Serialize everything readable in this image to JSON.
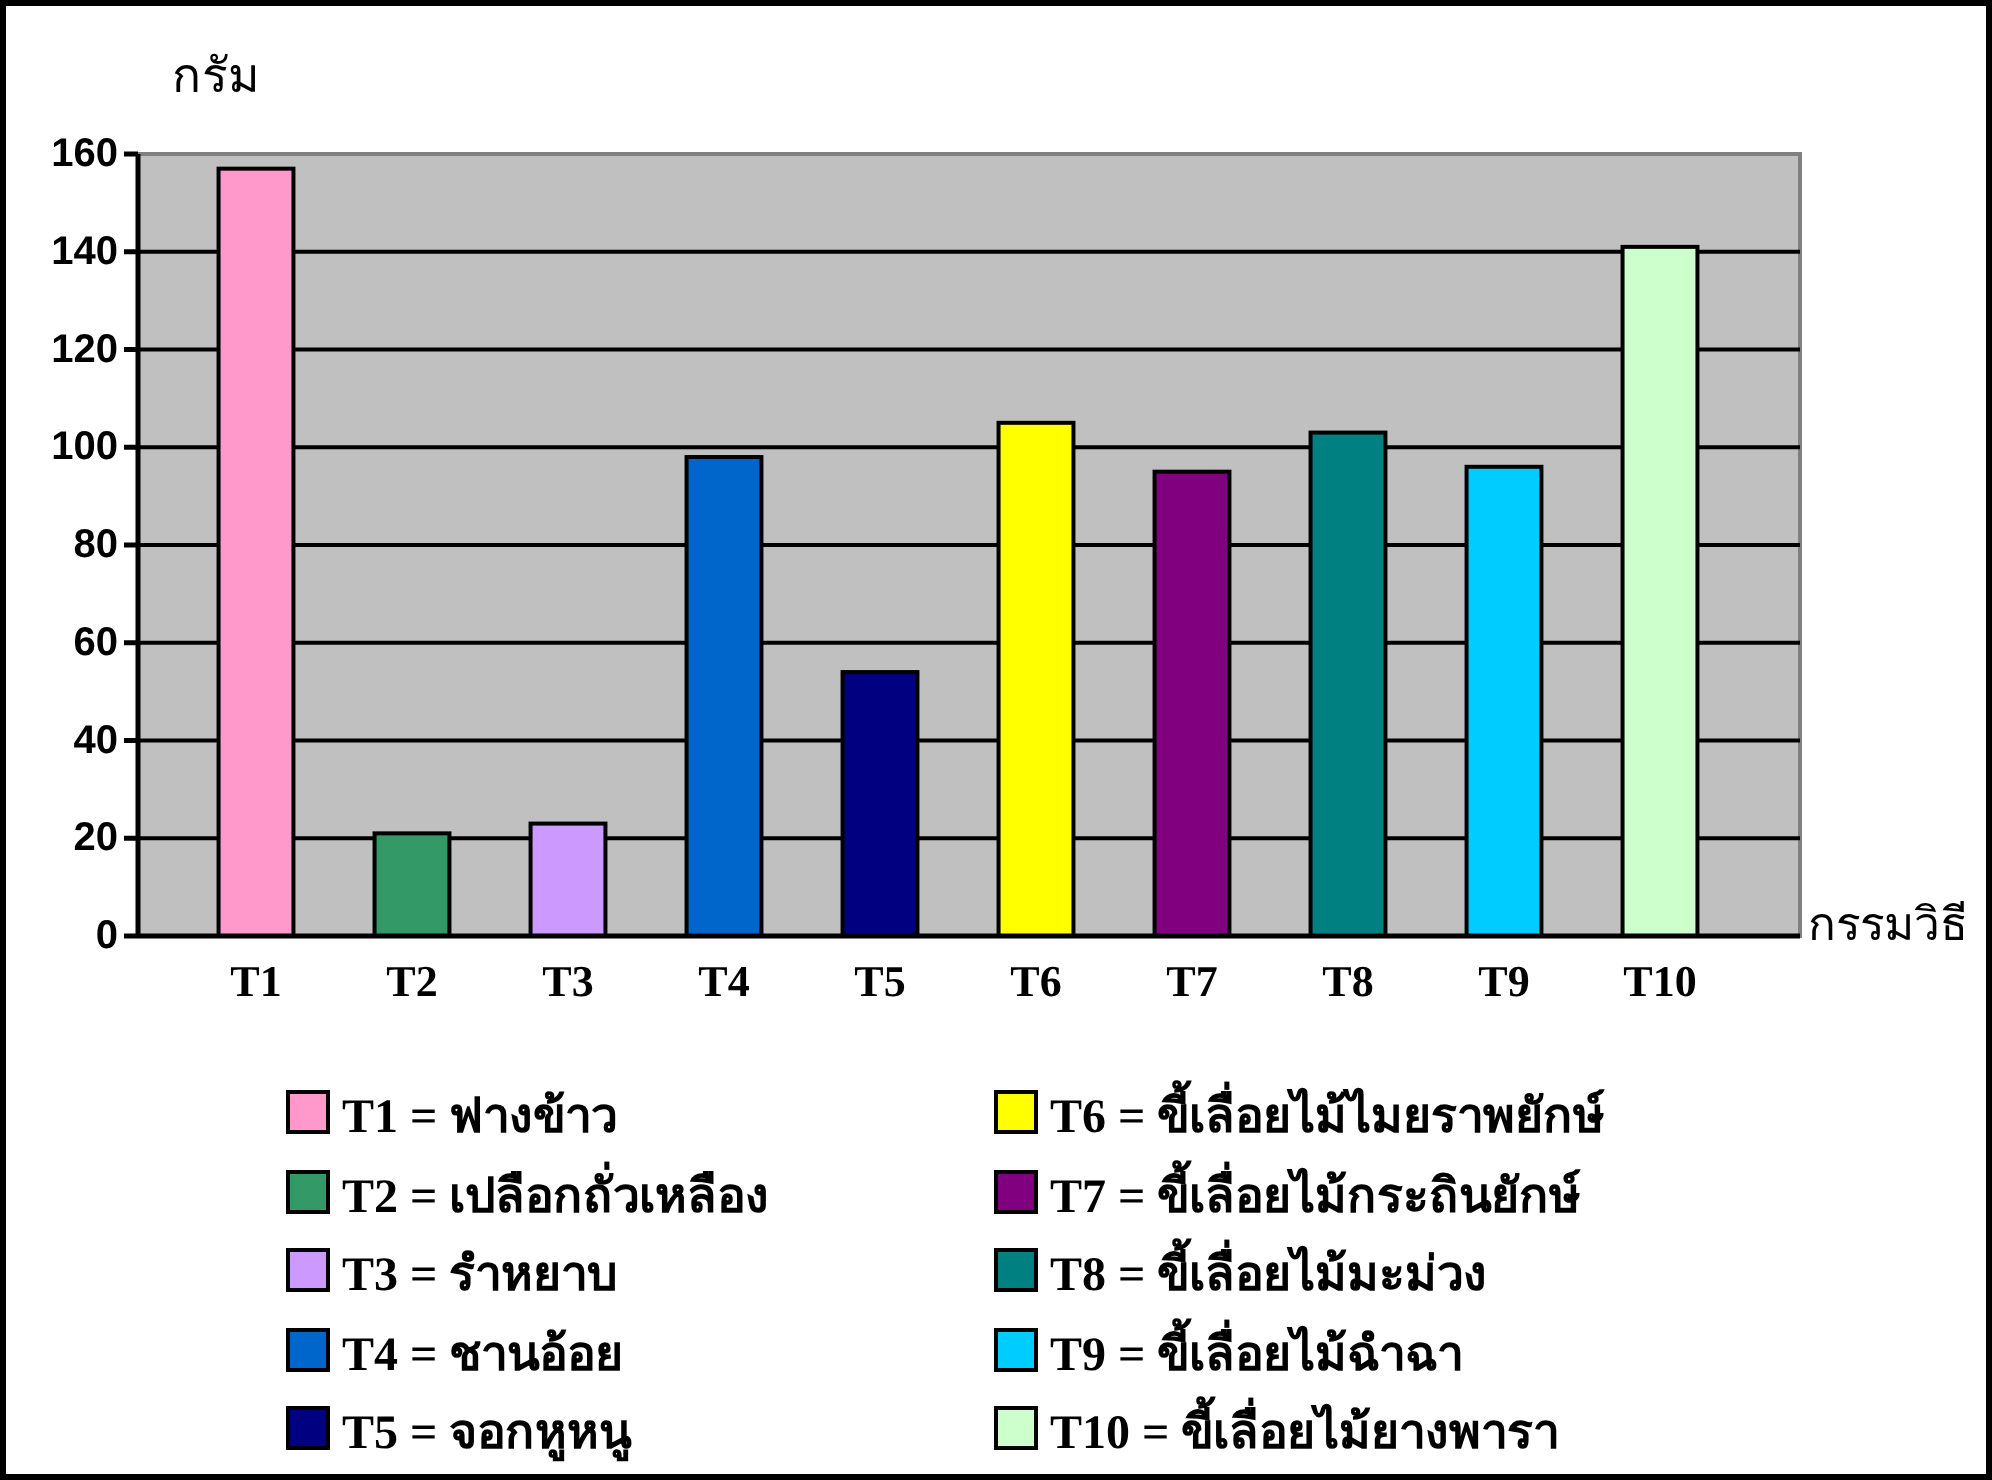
{
  "chart_data": {
    "type": "bar",
    "xlabel": "กรรมวิธี",
    "ylabel": "กรัม",
    "categories": [
      "T1",
      "T2",
      "T3",
      "T4",
      "T5",
      "T6",
      "T7",
      "T8",
      "T9",
      "T10"
    ],
    "stacked": true,
    "series": [
      {
        "name": "T1 = ฟางข้าว",
        "color": "#ff99cc",
        "values": [
          157,
          null,
          null,
          null,
          null,
          null,
          null,
          null,
          null,
          null
        ]
      },
      {
        "name": "T2 = เปลือกถั่วเหลือง",
        "color": "#339966",
        "values": [
          null,
          21,
          null,
          null,
          null,
          null,
          null,
          null,
          null,
          null
        ]
      },
      {
        "name": "T3 = รำหยาบ",
        "color": "#cc99ff",
        "values": [
          null,
          null,
          23,
          null,
          null,
          null,
          null,
          null,
          null,
          null
        ]
      },
      {
        "name": "T4 = ชานอ้อย",
        "color": "#0066cc",
        "values": [
          null,
          null,
          null,
          98,
          null,
          null,
          null,
          null,
          null,
          null
        ]
      },
      {
        "name": "T5 = จอกหูหนู",
        "color": "#000080",
        "values": [
          null,
          null,
          null,
          null,
          54,
          null,
          null,
          null,
          null,
          null
        ]
      },
      {
        "name": "T6 = ขี้เลื่อยไม้ไมยราพยักษ์",
        "color": "#ffff00",
        "values": [
          null,
          null,
          null,
          null,
          null,
          105,
          null,
          null,
          null,
          null
        ]
      },
      {
        "name": "T7 = ขี้เลื่อยไม้กระถินยักษ์",
        "color": "#800080",
        "values": [
          null,
          null,
          null,
          null,
          null,
          null,
          95,
          null,
          null,
          null
        ]
      },
      {
        "name": "T8 = ขี้เลื่อยไม้มะม่วง",
        "color": "#008080",
        "values": [
          null,
          null,
          null,
          null,
          null,
          null,
          null,
          103,
          null,
          null
        ]
      },
      {
        "name": "T9 = ขี้เลื่อยไม้ฉำฉา",
        "color": "#00ccff",
        "values": [
          null,
          null,
          null,
          null,
          null,
          null,
          null,
          null,
          96,
          null
        ]
      },
      {
        "name": "T10 = ขี้เลื่อยไม้ยางพารา",
        "color": "#ccffcc",
        "values": [
          null,
          null,
          null,
          null,
          null,
          null,
          null,
          null,
          null,
          141
        ]
      }
    ],
    "ylim": [
      0,
      160
    ],
    "yticks": [
      0,
      20,
      40,
      60,
      80,
      100,
      120,
      140,
      160
    ],
    "grid": "y",
    "legend": "bottom"
  }
}
